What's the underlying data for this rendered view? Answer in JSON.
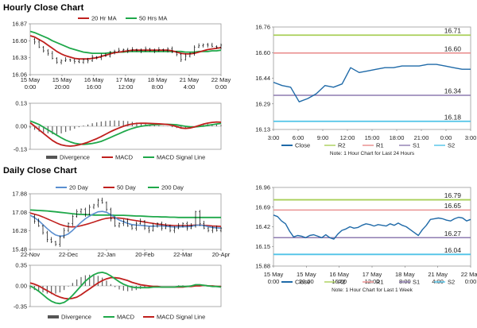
{
  "titles": {
    "hourly": "Hourly Close Chart",
    "daily": "Daily Close Chart"
  },
  "colors": {
    "price": "#000000",
    "ma20": "#c0201e",
    "ma50": "#1fa84a",
    "close": "#1f6aa8",
    "r2": "#a9cf58",
    "r1": "#e88a8a",
    "s1": "#8e7bb0",
    "s2": "#4fc3e8",
    "divergence": "#555555",
    "macd_hourly": "#c0201e",
    "signal_hourly": "#1fa84a",
    "macd_daily": "#1fa84a",
    "signal_daily": "#c0201e",
    "ma20d": "#5a8fd0",
    "ma50d": "#c0201e",
    "ma200d": "#1fa84a"
  },
  "chart_data": [
    {
      "id": "hourly-price",
      "type": "line",
      "legend": [
        "20 Hr MA",
        "50 Hrs MA"
      ],
      "ylim": [
        16.06,
        16.87
      ],
      "yticks": [
        "16.87",
        "16.60",
        "16.33",
        "16.06"
      ],
      "xticks": [
        "15 May\n0:00",
        "15 May\n20:00",
        "16 May\n16:00",
        "17 May\n12:00",
        "18 May\n8:00",
        "21 May\n4:00",
        "22 May\n0:00"
      ],
      "series": [
        {
          "name": "price",
          "values": [
            16.62,
            16.58,
            16.5,
            16.44,
            16.4,
            16.32,
            16.26,
            16.28,
            16.3,
            16.29,
            16.27,
            16.26,
            16.3,
            16.28,
            16.34,
            16.33,
            16.37,
            16.36,
            16.42,
            16.43,
            16.45,
            16.46,
            16.44,
            16.46,
            16.45,
            16.44,
            16.47,
            16.45,
            16.44,
            16.46,
            16.45,
            16.47,
            16.42,
            16.38,
            16.3,
            16.36,
            16.4,
            16.5,
            16.52,
            16.54,
            16.53,
            16.51,
            16.5,
            16.53
          ]
        },
        {
          "name": "20 Hr MA",
          "values": [
            16.68,
            16.66,
            16.62,
            16.58,
            16.53,
            16.48,
            16.43,
            16.39,
            16.36,
            16.34,
            16.32,
            16.31,
            16.31,
            16.31,
            16.32,
            16.33,
            16.35,
            16.37,
            16.39,
            16.41,
            16.42,
            16.43,
            16.44,
            16.45,
            16.45,
            16.45,
            16.45,
            16.45,
            16.45,
            16.45,
            16.45,
            16.45,
            16.44,
            16.42,
            16.4,
            16.39,
            16.39,
            16.4,
            16.42,
            16.44,
            16.46,
            16.47,
            16.48,
            16.49
          ]
        },
        {
          "name": "50 Hrs MA",
          "values": [
            16.75,
            16.73,
            16.7,
            16.67,
            16.64,
            16.6,
            16.57,
            16.54,
            16.51,
            16.48,
            16.46,
            16.44,
            16.42,
            16.41,
            16.4,
            16.4,
            16.4,
            16.4,
            16.41,
            16.41,
            16.42,
            16.42,
            16.43,
            16.43,
            16.43,
            16.43,
            16.43,
            16.43,
            16.43,
            16.43,
            16.43,
            16.43,
            16.43,
            16.43,
            16.43,
            16.42,
            16.42,
            16.42,
            16.43,
            16.43,
            16.43,
            16.44,
            16.44,
            16.45
          ]
        }
      ]
    },
    {
      "id": "hourly-macd",
      "type": "line",
      "legend": [
        "Divergence",
        "MACD",
        "MACD Signal Line"
      ],
      "ylim": [
        -0.13,
        0.13
      ],
      "yticks": [
        "0.13",
        "0.00",
        "-0.13"
      ],
      "series": [
        {
          "name": "MACD",
          "values": [
            0.02,
            0.0,
            -0.02,
            -0.04,
            -0.06,
            -0.08,
            -0.095,
            -0.105,
            -0.11,
            -0.112,
            -0.11,
            -0.105,
            -0.098,
            -0.09,
            -0.08,
            -0.07,
            -0.058,
            -0.045,
            -0.032,
            -0.02,
            -0.01,
            0.0,
            0.008,
            0.013,
            0.016,
            0.017,
            0.017,
            0.016,
            0.015,
            0.014,
            0.012,
            0.01,
            0.005,
            -0.002,
            -0.01,
            -0.012,
            -0.01,
            -0.004,
            0.004,
            0.012,
            0.018,
            0.022,
            0.024,
            0.023
          ]
        },
        {
          "name": "MACD Signal Line",
          "values": [
            0.03,
            0.02,
            0.01,
            -0.005,
            -0.02,
            -0.035,
            -0.05,
            -0.065,
            -0.078,
            -0.088,
            -0.096,
            -0.1,
            -0.102,
            -0.1,
            -0.097,
            -0.092,
            -0.085,
            -0.075,
            -0.064,
            -0.053,
            -0.042,
            -0.031,
            -0.021,
            -0.012,
            -0.005,
            0.0,
            0.004,
            0.007,
            0.009,
            0.01,
            0.011,
            0.011,
            0.01,
            0.008,
            0.004,
            0.0,
            -0.003,
            -0.004,
            -0.002,
            0.001,
            0.005,
            0.009,
            0.013,
            0.016
          ]
        },
        {
          "name": "Divergence",
          "values": [
            -0.01,
            -0.02,
            -0.03,
            -0.035,
            -0.04,
            -0.045,
            -0.045,
            -0.04,
            -0.032,
            -0.024,
            -0.014,
            -0.005,
            0.004,
            0.01,
            0.017,
            0.022,
            0.027,
            0.03,
            0.032,
            0.033,
            0.032,
            0.031,
            0.029,
            0.025,
            0.021,
            0.017,
            0.013,
            0.009,
            0.006,
            0.004,
            0.001,
            -0.001,
            -0.005,
            -0.01,
            -0.014,
            -0.012,
            -0.007,
            0.0,
            0.006,
            0.011,
            0.013,
            0.013,
            0.011,
            0.007
          ]
        }
      ]
    },
    {
      "id": "hourly-levels",
      "type": "line",
      "note": "Note: 1 Hour Chart for Last 24 Hours",
      "legend": [
        "Close",
        "R2",
        "R1",
        "S1",
        "S2"
      ],
      "ylim": [
        16.13,
        16.76
      ],
      "yticks": [
        "16.76",
        "16.60",
        "16.44",
        "16.29",
        "16.13"
      ],
      "xticks": [
        "3:00",
        "6:00",
        "9:00",
        "12:00",
        "15:00",
        "18:00",
        "21:00",
        "0:00",
        "3:00"
      ],
      "levels": {
        "R2": 16.71,
        "R1": 16.6,
        "S1": 16.34,
        "S2": 16.18
      },
      "level_labels": {
        "R2": "16.71",
        "R1": "16.60",
        "S1": "16.34",
        "S2": "16.18"
      },
      "series": [
        {
          "name": "Close",
          "values": [
            16.42,
            16.4,
            16.39,
            16.3,
            16.32,
            16.35,
            16.4,
            16.39,
            16.41,
            16.51,
            16.48,
            16.49,
            16.5,
            16.51,
            16.51,
            16.52,
            16.52,
            16.52,
            16.53,
            16.53,
            16.52,
            16.51,
            16.5,
            16.5
          ]
        }
      ]
    },
    {
      "id": "daily-price",
      "type": "line",
      "legend": [
        "20 Day",
        "50 Day",
        "200 Day"
      ],
      "ylim": [
        15.48,
        17.88
      ],
      "yticks": [
        "17.88",
        "17.08",
        "16.28",
        "15.48"
      ],
      "xticks": [
        "22-Nov",
        "22-Dec",
        "22-Jan",
        "20-Feb",
        "22-Mar",
        "20-Apr"
      ],
      "series": [
        {
          "name": "price",
          "values": [
            16.9,
            16.7,
            16.5,
            16.2,
            15.9,
            15.8,
            15.7,
            16.0,
            16.3,
            16.6,
            16.9,
            17.1,
            17.2,
            17.0,
            17.3,
            17.4,
            17.6,
            17.5,
            17.2,
            16.8,
            16.5,
            16.6,
            16.7,
            16.5,
            16.4,
            16.6,
            16.7,
            16.4,
            16.3,
            16.5,
            16.6,
            16.4,
            16.5,
            16.3,
            16.4,
            16.5,
            16.6,
            16.4,
            16.5,
            17.1,
            16.6,
            16.4,
            16.3,
            16.4,
            16.3,
            16.4
          ]
        },
        {
          "name": "20 Day",
          "values": [
            16.95,
            16.85,
            16.72,
            16.55,
            16.38,
            16.22,
            16.1,
            16.05,
            16.07,
            16.15,
            16.3,
            16.48,
            16.65,
            16.8,
            16.92,
            17.02,
            17.1,
            17.12,
            17.08,
            16.98,
            16.85,
            16.75,
            16.67,
            16.6,
            16.55,
            16.53,
            16.52,
            16.5,
            16.48,
            16.48,
            16.49,
            16.49,
            16.48,
            16.46,
            16.45,
            16.45,
            16.46,
            16.46,
            16.47,
            16.52,
            16.53,
            16.5,
            16.46,
            16.43,
            16.41,
            16.4
          ]
        },
        {
          "name": "50 Day",
          "values": [
            17.05,
            17.0,
            16.95,
            16.88,
            16.8,
            16.72,
            16.64,
            16.56,
            16.5,
            16.46,
            16.45,
            16.46,
            16.5,
            16.55,
            16.6,
            16.66,
            16.72,
            16.78,
            16.82,
            16.84,
            16.84,
            16.83,
            16.81,
            16.78,
            16.75,
            16.72,
            16.69,
            16.66,
            16.63,
            16.6,
            16.57,
            16.55,
            16.53,
            16.52,
            16.51,
            16.51,
            16.51,
            16.51,
            16.52,
            16.53,
            16.53,
            16.52,
            16.51,
            16.49,
            16.48,
            16.47
          ]
        },
        {
          "name": "200 Day",
          "values": [
            17.18,
            17.17,
            17.16,
            17.15,
            17.14,
            17.12,
            17.1,
            17.08,
            17.06,
            17.04,
            17.02,
            17.0,
            16.99,
            16.98,
            16.97,
            16.96,
            16.96,
            16.96,
            16.96,
            16.96,
            16.95,
            16.95,
            16.95,
            16.94,
            16.93,
            16.92,
            16.92,
            16.91,
            16.9,
            16.89,
            16.89,
            16.88,
            16.88,
            16.87,
            16.87,
            16.86,
            16.86,
            16.86,
            16.86,
            16.86,
            16.86,
            16.86,
            16.86,
            16.86,
            16.86,
            16.86
          ]
        }
      ]
    },
    {
      "id": "daily-macd",
      "type": "line",
      "legend": [
        "Divergence",
        "MACD",
        "MACD Signal Line"
      ],
      "ylim": [
        -0.35,
        0.35
      ],
      "yticks": [
        "0.35",
        "0.00",
        "-0.35"
      ],
      "series": [
        {
          "name": "MACD",
          "values": [
            0.0,
            -0.04,
            -0.09,
            -0.15,
            -0.21,
            -0.26,
            -0.29,
            -0.3,
            -0.28,
            -0.23,
            -0.16,
            -0.08,
            0.0,
            0.08,
            0.14,
            0.19,
            0.22,
            0.23,
            0.21,
            0.17,
            0.12,
            0.07,
            0.03,
            0.0,
            -0.02,
            -0.03,
            -0.03,
            -0.03,
            -0.03,
            -0.02,
            -0.02,
            -0.02,
            -0.02,
            -0.02,
            -0.02,
            -0.01,
            -0.01,
            -0.01,
            0.0,
            0.02,
            0.02,
            0.01,
            0.0,
            -0.01,
            -0.01,
            -0.02
          ]
        },
        {
          "name": "MACD Signal Line",
          "values": [
            0.05,
            0.03,
            0.0,
            -0.04,
            -0.08,
            -0.12,
            -0.16,
            -0.19,
            -0.21,
            -0.22,
            -0.21,
            -0.19,
            -0.15,
            -0.1,
            -0.05,
            0.0,
            0.05,
            0.09,
            0.12,
            0.14,
            0.14,
            0.13,
            0.11,
            0.09,
            0.06,
            0.04,
            0.02,
            0.01,
            0.0,
            -0.01,
            -0.01,
            -0.02,
            -0.02,
            -0.02,
            -0.02,
            -0.02,
            -0.02,
            -0.01,
            -0.01,
            0.0,
            0.0,
            0.01,
            0.0,
            0.0,
            -0.01,
            -0.01
          ]
        },
        {
          "name": "Divergence",
          "values": [
            -0.05,
            -0.07,
            -0.09,
            -0.11,
            -0.13,
            -0.14,
            -0.13,
            -0.11,
            -0.07,
            -0.01,
            0.05,
            0.11,
            0.15,
            0.18,
            0.19,
            0.19,
            0.17,
            0.14,
            0.09,
            0.03,
            -0.02,
            -0.06,
            -0.08,
            -0.09,
            -0.08,
            -0.07,
            -0.05,
            -0.04,
            -0.03,
            -0.01,
            -0.01,
            0.0,
            0.0,
            0.0,
            0.0,
            0.01,
            0.01,
            0.0,
            0.01,
            0.02,
            0.02,
            0.0,
            0.0,
            -0.01,
            0.0,
            -0.01
          ]
        }
      ]
    },
    {
      "id": "daily-levels",
      "type": "line",
      "note": "Note: 1 Hour Chart for Last 1 Week",
      "legend": [
        "Close",
        "R2",
        "R1",
        "S1",
        "S2"
      ],
      "ylim": [
        15.88,
        16.96
      ],
      "yticks": [
        "16.96",
        "16.69",
        "16.42",
        "16.15",
        "15.88"
      ],
      "xticks": [
        "15 May\n0:00",
        "15 May\n20:00",
        "16 May\n16:00",
        "17 May\n12:00",
        "18 May\n8:00",
        "21 May\n4:00",
        "22 May\n0:00"
      ],
      "levels": {
        "R2": 16.79,
        "R1": 16.65,
        "S1": 16.27,
        "S2": 16.04
      },
      "level_labels": {
        "R2": "16.79",
        "R1": "16.65",
        "S1": "16.27",
        "S2": "16.04"
      },
      "series": [
        {
          "name": "Close",
          "values": [
            16.58,
            16.56,
            16.5,
            16.46,
            16.36,
            16.28,
            16.3,
            16.29,
            16.27,
            16.3,
            16.31,
            16.29,
            16.27,
            16.31,
            16.27,
            16.25,
            16.32,
            16.37,
            16.39,
            16.42,
            16.4,
            16.41,
            16.44,
            16.46,
            16.45,
            16.43,
            16.45,
            16.44,
            16.43,
            16.46,
            16.44,
            16.47,
            16.44,
            16.42,
            16.38,
            16.34,
            16.3,
            16.38,
            16.44,
            16.52,
            16.53,
            16.54,
            16.53,
            16.51,
            16.5,
            16.53,
            16.55,
            16.54,
            16.5,
            16.52
          ]
        }
      ]
    }
  ]
}
